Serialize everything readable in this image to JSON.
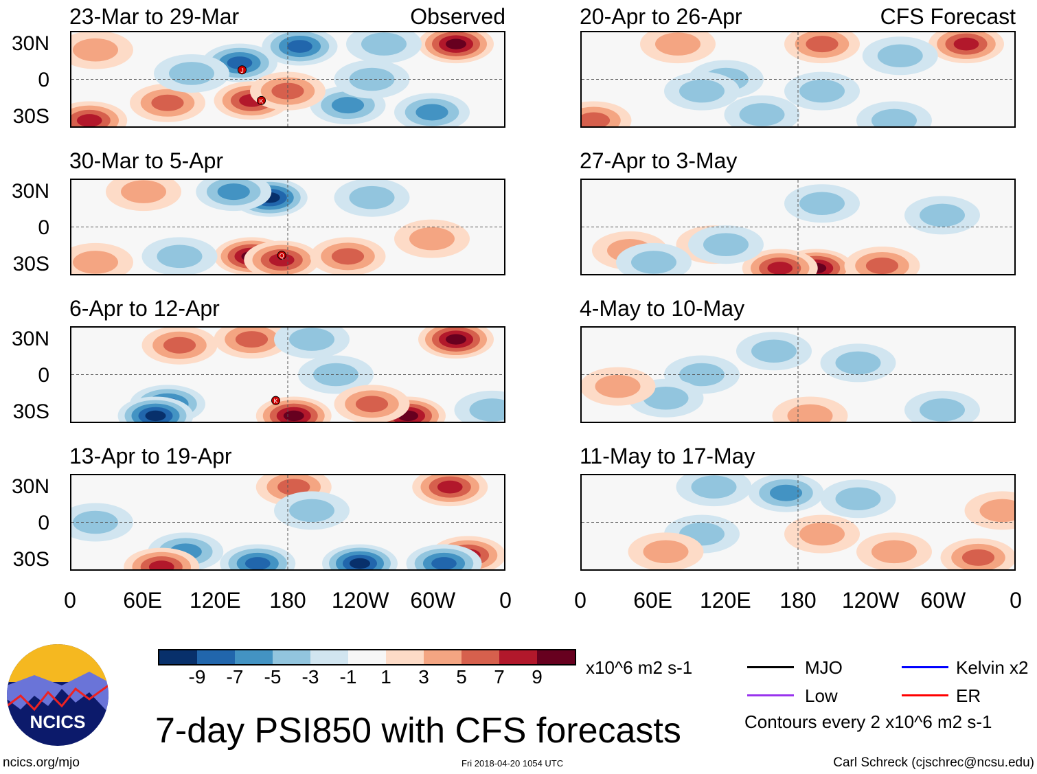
{
  "title": "7-day PSI850 with CFS forecasts",
  "observed_label": "Observed",
  "forecast_label": "CFS Forecast",
  "lat_labels": [
    "30N",
    "0",
    "30S"
  ],
  "lon_labels": [
    "0",
    "60E",
    "120E",
    "180",
    "120W",
    "60W",
    "0"
  ],
  "panels": [
    {
      "title": "23-Mar to 29-Mar",
      "blobs": [
        [
          140,
          14,
          -7
        ],
        [
          190,
          28,
          -7
        ],
        [
          320,
          30,
          9
        ],
        [
          150,
          -18,
          7
        ],
        [
          15,
          -35,
          7
        ],
        [
          80,
          -20,
          5
        ],
        [
          230,
          -22,
          -5
        ],
        [
          300,
          -28,
          -5
        ],
        [
          100,
          5,
          -3
        ],
        [
          250,
          0,
          -3
        ],
        [
          180,
          -10,
          5
        ],
        [
          20,
          25,
          3
        ],
        [
          260,
          30,
          -3
        ]
      ],
      "storms": [
        {
          "lon": 142,
          "lat": 8,
          "label": "J"
        },
        {
          "lon": 158,
          "lat": -18,
          "label": "K"
        }
      ]
    },
    {
      "title": "30-Mar to 5-Apr",
      "blobs": [
        [
          165,
          25,
          -10
        ],
        [
          135,
          30,
          -5
        ],
        [
          150,
          -25,
          9
        ],
        [
          175,
          -28,
          7
        ],
        [
          230,
          -25,
          5
        ],
        [
          90,
          -25,
          -3
        ],
        [
          250,
          25,
          -3
        ],
        [
          300,
          -10,
          3
        ],
        [
          20,
          -30,
          3
        ],
        [
          60,
          30,
          3
        ]
      ],
      "storms": [
        {
          "lon": 175,
          "lat": -24,
          "label": "Q"
        }
      ]
    },
    {
      "title": "6-Apr to 12-Apr",
      "blobs": [
        [
          80,
          -25,
          -7
        ],
        [
          70,
          -35,
          -9
        ],
        [
          185,
          -35,
          9
        ],
        [
          320,
          30,
          9
        ],
        [
          280,
          -35,
          9
        ],
        [
          150,
          30,
          5
        ],
        [
          90,
          25,
          5
        ],
        [
          220,
          0,
          -3
        ],
        [
          250,
          -25,
          5
        ],
        [
          350,
          -30,
          -3
        ],
        [
          200,
          30,
          -3
        ]
      ],
      "storms": [
        {
          "lon": 170,
          "lat": -22,
          "label": "K"
        }
      ]
    },
    {
      "title": "13-Apr to 19-Apr",
      "blobs": [
        [
          240,
          -35,
          -10
        ],
        [
          155,
          -35,
          -7
        ],
        [
          95,
          -25,
          -5
        ],
        [
          185,
          30,
          5
        ],
        [
          315,
          30,
          7
        ],
        [
          75,
          -38,
          7
        ],
        [
          330,
          -28,
          7
        ],
        [
          310,
          -35,
          -7
        ],
        [
          20,
          0,
          -3
        ],
        [
          200,
          10,
          -3
        ]
      ],
      "storms": []
    },
    {
      "title": "20-Apr to 26-Apr",
      "blobs": [
        [
          320,
          30,
          7
        ],
        [
          200,
          30,
          5
        ],
        [
          80,
          30,
          3
        ],
        [
          265,
          20,
          -3
        ],
        [
          120,
          0,
          -3
        ],
        [
          200,
          -10,
          -3
        ],
        [
          260,
          -35,
          -3
        ],
        [
          150,
          -30,
          -3
        ],
        [
          10,
          -35,
          5
        ],
        [
          100,
          -10,
          -3
        ]
      ],
      "storms": []
    },
    {
      "title": "27-Apr to 3-May",
      "blobs": [
        [
          195,
          -35,
          9
        ],
        [
          165,
          -35,
          7
        ],
        [
          250,
          -33,
          5
        ],
        [
          110,
          -15,
          3
        ],
        [
          40,
          -20,
          3
        ],
        [
          200,
          20,
          -3
        ],
        [
          120,
          -15,
          -3
        ],
        [
          300,
          10,
          -3
        ],
        [
          60,
          -30,
          -3
        ]
      ],
      "storms": []
    },
    {
      "title": "4-May to 10-May",
      "blobs": [
        [
          160,
          20,
          -3
        ],
        [
          100,
          0,
          -3
        ],
        [
          230,
          10,
          -3
        ],
        [
          190,
          -35,
          3
        ],
        [
          70,
          -20,
          -3
        ],
        [
          300,
          -30,
          -3
        ],
        [
          30,
          -10,
          3
        ]
      ],
      "storms": []
    },
    {
      "title": "11-May to 17-May",
      "blobs": [
        [
          170,
          25,
          -5
        ],
        [
          110,
          30,
          -3
        ],
        [
          230,
          20,
          -3
        ],
        [
          100,
          -10,
          -3
        ],
        [
          200,
          -10,
          3
        ],
        [
          330,
          -30,
          5
        ],
        [
          70,
          -25,
          3
        ],
        [
          260,
          -25,
          3
        ],
        [
          350,
          10,
          3
        ]
      ],
      "storms": []
    }
  ],
  "colorbar": {
    "colors": [
      "#08306b",
      "#2166ac",
      "#4393c3",
      "#92c5de",
      "#d1e5f0",
      "#f7f7f7",
      "#fddbc7",
      "#f4a582",
      "#d6604d",
      "#b2182b",
      "#67001f"
    ],
    "labels": [
      "-9",
      "-7",
      "-5",
      "-3",
      "-1",
      "1",
      "3",
      "5",
      "7",
      "9"
    ],
    "units": "x10^6 m2 s-1"
  },
  "legend": [
    {
      "label": "MJO",
      "color": "#000000"
    },
    {
      "label": "Kelvin x2",
      "color": "#0000ff"
    },
    {
      "label": "Low",
      "color": "#9933ee"
    },
    {
      "label": "ER",
      "color": "#ff0000"
    }
  ],
  "contour_note": "Contours every 2 x10^6 m2 s-1",
  "footer": {
    "site": "ncics.org/mjo",
    "timestamp": "Fri 2018-04-20 1054 UTC",
    "credit": "Carl Schreck (cjschrec@ncsu.edu)"
  },
  "logo_text": "NCICS"
}
